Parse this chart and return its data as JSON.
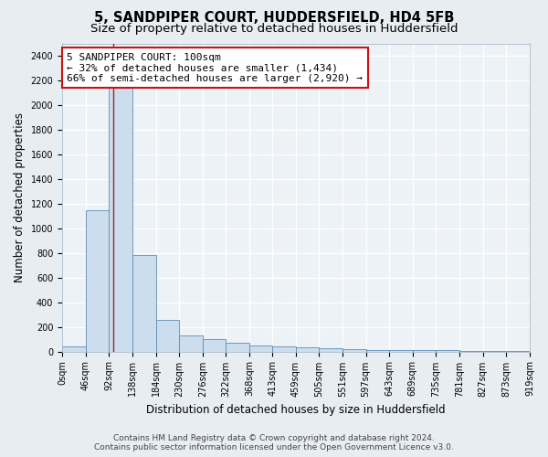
{
  "title": "5, SANDPIPER COURT, HUDDERSFIELD, HD4 5FB",
  "subtitle": "Size of property relative to detached houses in Huddersfield",
  "xlabel": "Distribution of detached houses by size in Huddersfield",
  "ylabel": "Number of detached properties",
  "footer_line1": "Contains HM Land Registry data © Crown copyright and database right 2024.",
  "footer_line2": "Contains public sector information licensed under the Open Government Licence v3.0.",
  "bin_edges": [
    0,
    46,
    92,
    138,
    184,
    230,
    276,
    322,
    368,
    413,
    459,
    505,
    551,
    597,
    643,
    689,
    735,
    781,
    827,
    873,
    919
  ],
  "bar_heights": [
    40,
    1150,
    2200,
    780,
    260,
    130,
    100,
    70,
    50,
    45,
    35,
    25,
    20,
    15,
    15,
    10,
    8,
    5,
    5,
    5
  ],
  "bar_color": "#ccdded",
  "bar_edge_color": "#5b8db8",
  "vline_color": "#aa2222",
  "vline_x": 100,
  "annotation_text": "5 SANDPIPER COURT: 100sqm\n← 32% of detached houses are smaller (1,434)\n66% of semi-detached houses are larger (2,920) →",
  "annotation_box_facecolor": "white",
  "annotation_box_edgecolor": "#cc1111",
  "ylim": [
    0,
    2500
  ],
  "yticks": [
    0,
    200,
    400,
    600,
    800,
    1000,
    1200,
    1400,
    1600,
    1800,
    2000,
    2200,
    2400
  ],
  "background_color": "#e8edf2",
  "plot_bg_color": "#edf2f7",
  "grid_color": "white",
  "title_fontsize": 10.5,
  "subtitle_fontsize": 9.5,
  "axis_label_fontsize": 8.5,
  "tick_label_fontsize": 7,
  "annotation_fontsize": 8,
  "footer_fontsize": 6.5
}
